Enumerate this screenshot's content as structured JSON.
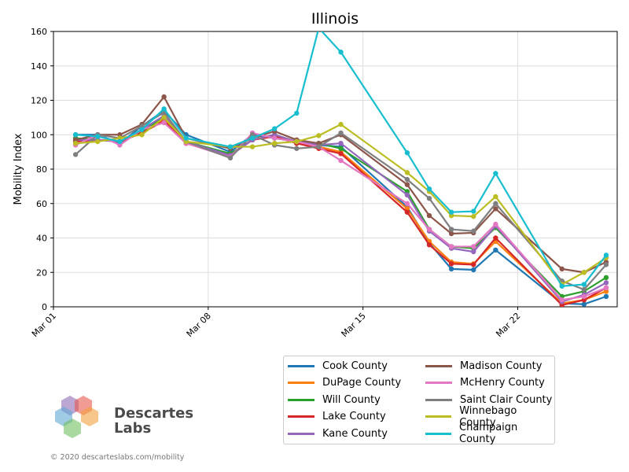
{
  "chart_data": {
    "type": "line",
    "title": "Illinois",
    "xlabel": "",
    "ylabel": "Mobility Index",
    "ylim": [
      0,
      160
    ],
    "yticks": [
      0,
      20,
      40,
      60,
      80,
      100,
      120,
      140,
      160
    ],
    "xticks": [
      {
        "day": 1,
        "label": "Mar 01"
      },
      {
        "day": 8,
        "label": "Mar 08"
      },
      {
        "day": 15,
        "label": "Mar 15"
      },
      {
        "day": 22,
        "label": "Mar 22"
      }
    ],
    "xlim": [
      1,
      26.5
    ],
    "days": [
      2,
      3,
      4,
      5,
      6,
      7,
      9,
      10,
      11,
      12,
      13,
      14,
      17,
      18,
      19,
      20,
      21,
      24,
      25,
      26
    ],
    "grid": true,
    "legend_position": "bottom-right",
    "series": [
      {
        "name": "Cook County",
        "color": "#1f77b4",
        "values": [
          100,
          100,
          95,
          105,
          114,
          100,
          90,
          100,
          98,
          96,
          94,
          93,
          58,
          37,
          22,
          21.5,
          33,
          2,
          1.5,
          6
        ]
      },
      {
        "name": "DuPage County",
        "color": "#ff7f0e",
        "values": [
          97,
          97,
          96,
          102,
          109,
          95,
          88,
          97,
          99,
          95,
          93,
          90,
          57,
          38,
          26,
          25,
          38,
          2,
          4,
          9
        ]
      },
      {
        "name": "Will County",
        "color": "#2ca02c",
        "values": [
          98,
          97,
          96,
          102,
          110,
          96,
          89,
          97,
          100,
          96,
          95,
          92,
          67,
          45,
          35,
          34,
          46,
          6,
          9,
          17
        ]
      },
      {
        "name": "Lake County",
        "color": "#d62728",
        "values": [
          96,
          97,
          96,
          101,
          108,
          95,
          88,
          97,
          99,
          95,
          92,
          89,
          55,
          36,
          25,
          24.5,
          40,
          1,
          4,
          11
        ]
      },
      {
        "name": "Kane County",
        "color": "#9467bd",
        "values": [
          97,
          97,
          96,
          103,
          111,
          96,
          88,
          97,
          100,
          96,
          94,
          95,
          65,
          44,
          34,
          32,
          47,
          3,
          7,
          14
        ]
      },
      {
        "name": "Madison County",
        "color": "#8c564b",
        "values": [
          97,
          100,
          100,
          106,
          122,
          98,
          92,
          98,
          102,
          97,
          95,
          100,
          71,
          53,
          42.5,
          43,
          57,
          22,
          20,
          26
        ]
      },
      {
        "name": "McHenry County",
        "color": "#e377c2",
        "values": [
          94,
          100,
          94,
          103,
          107,
          95,
          87,
          101,
          98,
          96,
          93,
          85,
          60,
          45,
          35,
          35,
          48,
          4,
          6,
          11
        ]
      },
      {
        "name": "Saint Clair County",
        "color": "#7f7f7f",
        "values": [
          88.5,
          100,
          98,
          105,
          113,
          96,
          86.5,
          100,
          94,
          92,
          93,
          101,
          74,
          63,
          45,
          44,
          60,
          15,
          10,
          24.5
        ]
      },
      {
        "name": "Winnebago County",
        "color": "#bcbd22",
        "values": [
          95,
          96,
          98,
          100,
          110,
          96,
          93,
          93,
          95,
          96,
          99.5,
          106,
          78,
          67,
          53,
          52.5,
          64,
          13,
          20,
          28.5
        ]
      },
      {
        "name": "Champaign County",
        "color": "#17becf",
        "values": [
          100,
          99,
          96,
          103,
          115,
          98,
          93,
          98,
          103.5,
          112.5,
          162,
          148,
          89.5,
          68.5,
          55,
          55.5,
          77.5,
          12,
          13,
          30
        ]
      }
    ]
  },
  "brand": {
    "line1": "Descartes",
    "line2": "Labs"
  },
  "copyright": "© 2020 descarteslabs.com/mobility",
  "logo_colors": [
    "#8e6ab8",
    "#e8584f",
    "#5fa8d3",
    "#f2a03d",
    "#6fbf5f"
  ]
}
